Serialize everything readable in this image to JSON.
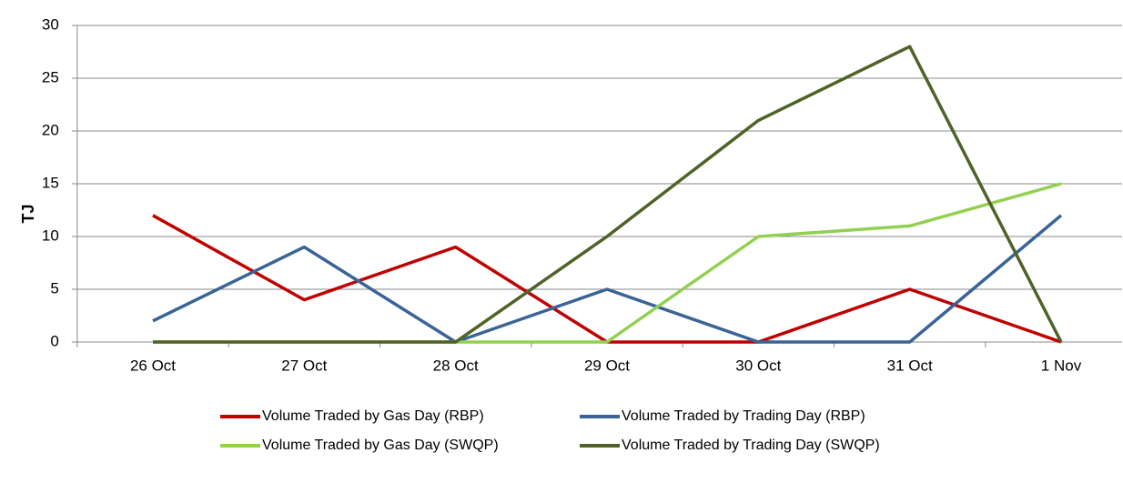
{
  "chart_data": {
    "type": "line",
    "y_label": "TJ",
    "categories": [
      "26 Oct",
      "27 Oct",
      "28 Oct",
      "29 Oct",
      "30 Oct",
      "31 Oct",
      "1 Nov"
    ],
    "series": [
      {
        "name": "Volume Traded by Gas Day (RBP)",
        "color": "#c00000",
        "values": [
          12,
          4,
          9,
          0,
          0,
          5,
          0
        ]
      },
      {
        "name": "Volume Traded by Trading Day (RBP)",
        "color": "#3a6496",
        "values": [
          2,
          9,
          0,
          5,
          0,
          0,
          12
        ]
      },
      {
        "name": "Volume Traded by Gas Day (SWQP)",
        "color": "#92d050",
        "values": [
          0,
          0,
          0,
          0,
          10,
          11,
          15
        ]
      },
      {
        "name": "Volume Traded by Trading Day (SWQP)",
        "color": "#4f6228",
        "values": [
          0,
          0,
          0,
          10,
          21,
          28,
          0
        ]
      }
    ],
    "ylim": [
      0,
      30
    ],
    "yticks": [
      0,
      5,
      10,
      15,
      20,
      25,
      30
    ],
    "grid": true
  }
}
